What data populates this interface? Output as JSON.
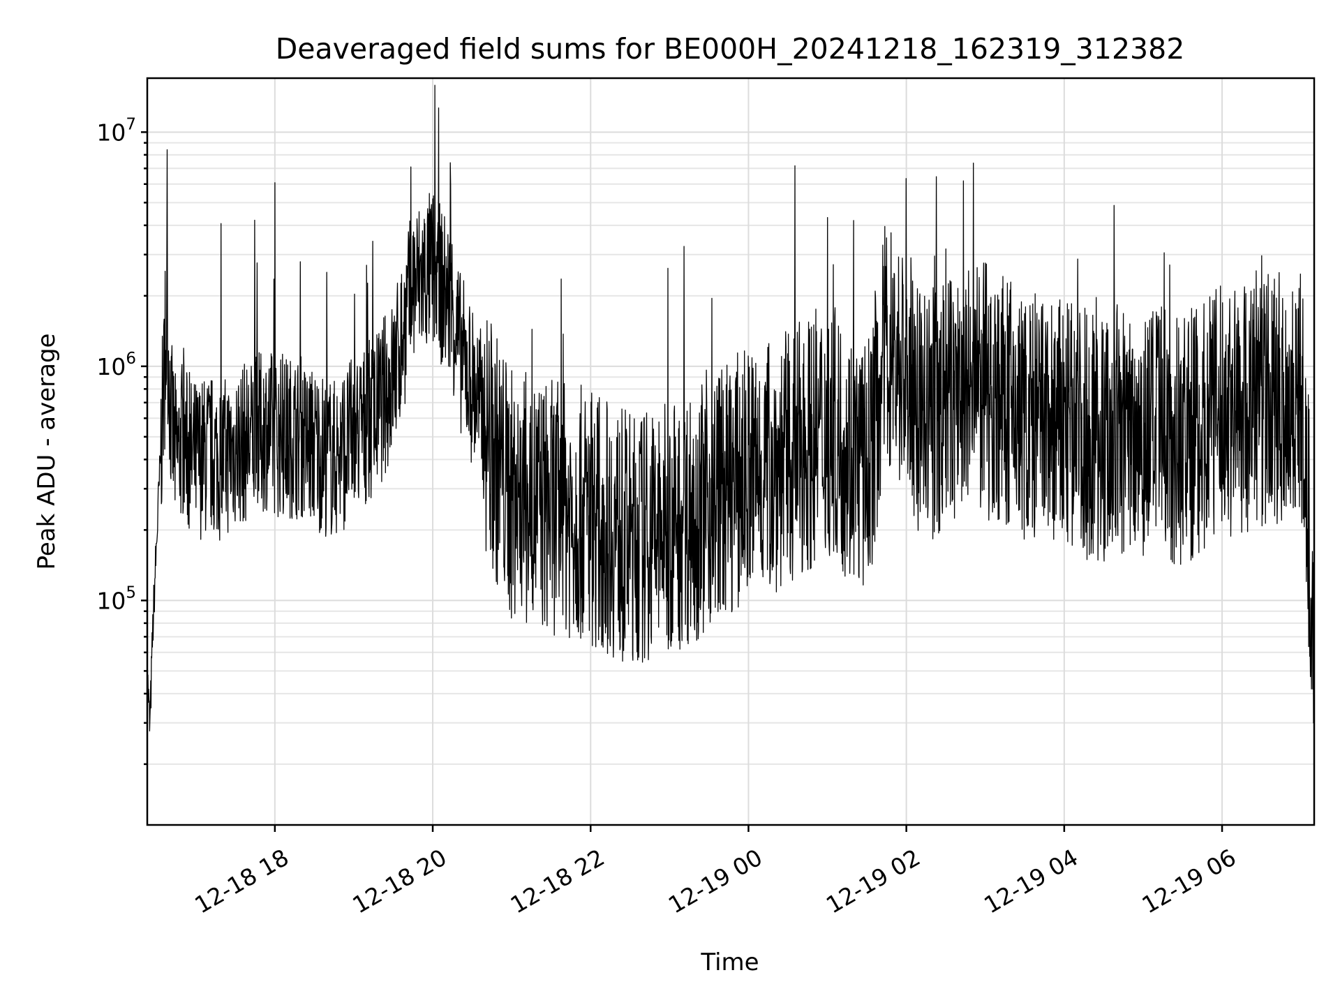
{
  "chart_data": {
    "type": "line",
    "title": "Deaveraged field sums for BE000H_20241218_162319_312382",
    "xlabel": "Time",
    "ylabel": "Peak ADU - average",
    "yscale": "log",
    "ylim": [
      11000,
      17000000
    ],
    "xlim": [
      "2024-12-18 16:23",
      "2024-12-19 07:10"
    ],
    "grid": true,
    "legend": "none",
    "line_color": "#000000",
    "x_ticks": [
      {
        "value": "2024-12-18 18:00",
        "label": "12-18 18"
      },
      {
        "value": "2024-12-18 20:00",
        "label": "12-18 20"
      },
      {
        "value": "2024-12-18 22:00",
        "label": "12-18 22"
      },
      {
        "value": "2024-12-19 00:00",
        "label": "12-19 00"
      },
      {
        "value": "2024-12-19 02:00",
        "label": "12-19 02"
      },
      {
        "value": "2024-12-19 04:00",
        "label": "12-19 04"
      },
      {
        "value": "2024-12-19 06:00",
        "label": "12-19 06"
      }
    ],
    "y_ticks": [
      {
        "value": 100000,
        "base": "10",
        "exponent": "5"
      },
      {
        "value": 1000000,
        "base": "10",
        "exponent": "6"
      },
      {
        "value": 10000000,
        "base": "10",
        "exponent": "7"
      }
    ],
    "series": [
      {
        "x": [
          "2024-12-18 16:23",
          "2024-12-18 16:25",
          "2024-12-18 16:27",
          "2024-12-18 16:29",
          "2024-12-18 16:32",
          "2024-12-18 16:35",
          "2024-12-18 16:38",
          "2024-12-18 16:41",
          "2024-12-18 16:45",
          "2024-12-18 16:50",
          "2024-12-18 16:55",
          "2024-12-18 17:00",
          "2024-12-18 17:10",
          "2024-12-18 17:20",
          "2024-12-18 17:30",
          "2024-12-18 17:40",
          "2024-12-18 17:50",
          "2024-12-18 17:55",
          "2024-12-18 18:00",
          "2024-12-18 18:15",
          "2024-12-18 18:30",
          "2024-12-18 18:45",
          "2024-12-18 19:00",
          "2024-12-18 19:15",
          "2024-12-18 19:30",
          "2024-12-18 19:35",
          "2024-12-18 19:45",
          "2024-12-18 20:00",
          "2024-12-18 20:10",
          "2024-12-18 20:15",
          "2024-12-18 20:20",
          "2024-12-18 20:35",
          "2024-12-18 20:45",
          "2024-12-18 21:00",
          "2024-12-18 21:30",
          "2024-12-18 22:00",
          "2024-12-18 22:30",
          "2024-12-18 23:00",
          "2024-12-18 23:30",
          "2024-12-19 00:00",
          "2024-12-19 00:30",
          "2024-12-19 01:00",
          "2024-12-19 01:30",
          "2024-12-19 01:45",
          "2024-12-19 02:00",
          "2024-12-19 02:15",
          "2024-12-19 02:30",
          "2024-12-19 03:00",
          "2024-12-19 03:30",
          "2024-12-19 04:00",
          "2024-12-19 04:30",
          "2024-12-19 05:00",
          "2024-12-19 05:30",
          "2024-12-19 06:00",
          "2024-12-19 06:30",
          "2024-12-19 07:00",
          "2024-12-19 07:10"
        ],
        "y": [
          50000,
          28000,
          70000,
          130000,
          300000,
          700000,
          1500000,
          600000,
          400000,
          500000,
          400000,
          400000,
          420000,
          400000,
          450000,
          480000,
          520000,
          550000,
          500000,
          500000,
          450000,
          400000,
          500000,
          600000,
          900000,
          1200000,
          2200000,
          2600000,
          2000000,
          1800000,
          1200000,
          700000,
          450000,
          280000,
          250000,
          230000,
          180000,
          200000,
          260000,
          350000,
          400000,
          550000,
          350000,
          1300000,
          900000,
          600000,
          700000,
          800000,
          600000,
          550000,
          500000,
          550000,
          480000,
          650000,
          700000,
          750000,
          80000
        ]
      }
    ]
  }
}
